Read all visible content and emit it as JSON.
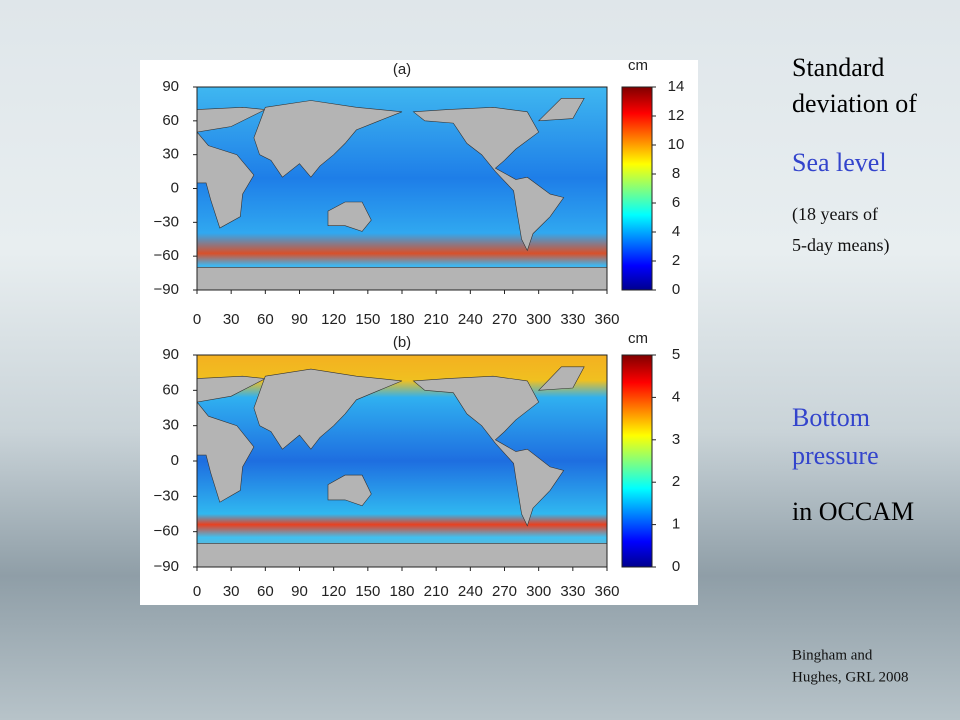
{
  "figure": {
    "unit": "cm",
    "xticks": [
      0,
      30,
      60,
      90,
      120,
      150,
      180,
      210,
      240,
      270,
      300,
      330,
      360
    ],
    "yticks": [
      90,
      60,
      30,
      0,
      {
        "value": -30,
        "label": "−30"
      },
      {
        "value": -60,
        "label": "−60"
      },
      {
        "value": -90,
        "label": "−90"
      }
    ],
    "panels": [
      {
        "label": "(a)",
        "colorbar_ticks": [
          0,
          2,
          4,
          6,
          8,
          10,
          12,
          14
        ]
      },
      {
        "label": "(b)",
        "colorbar_ticks": [
          0,
          1,
          2,
          3,
          4,
          5
        ]
      }
    ]
  },
  "text": {
    "title_lines": [
      "Standard",
      "deviation of"
    ],
    "sea_level": "Sea level",
    "sea_note": [
      "(18 years of",
      "5-day means)"
    ],
    "bottom": [
      "Bottom",
      "pressure"
    ],
    "model": "in OCCAM",
    "citation": [
      "Bingham and",
      "Hughes, GRL 2008"
    ]
  }
}
